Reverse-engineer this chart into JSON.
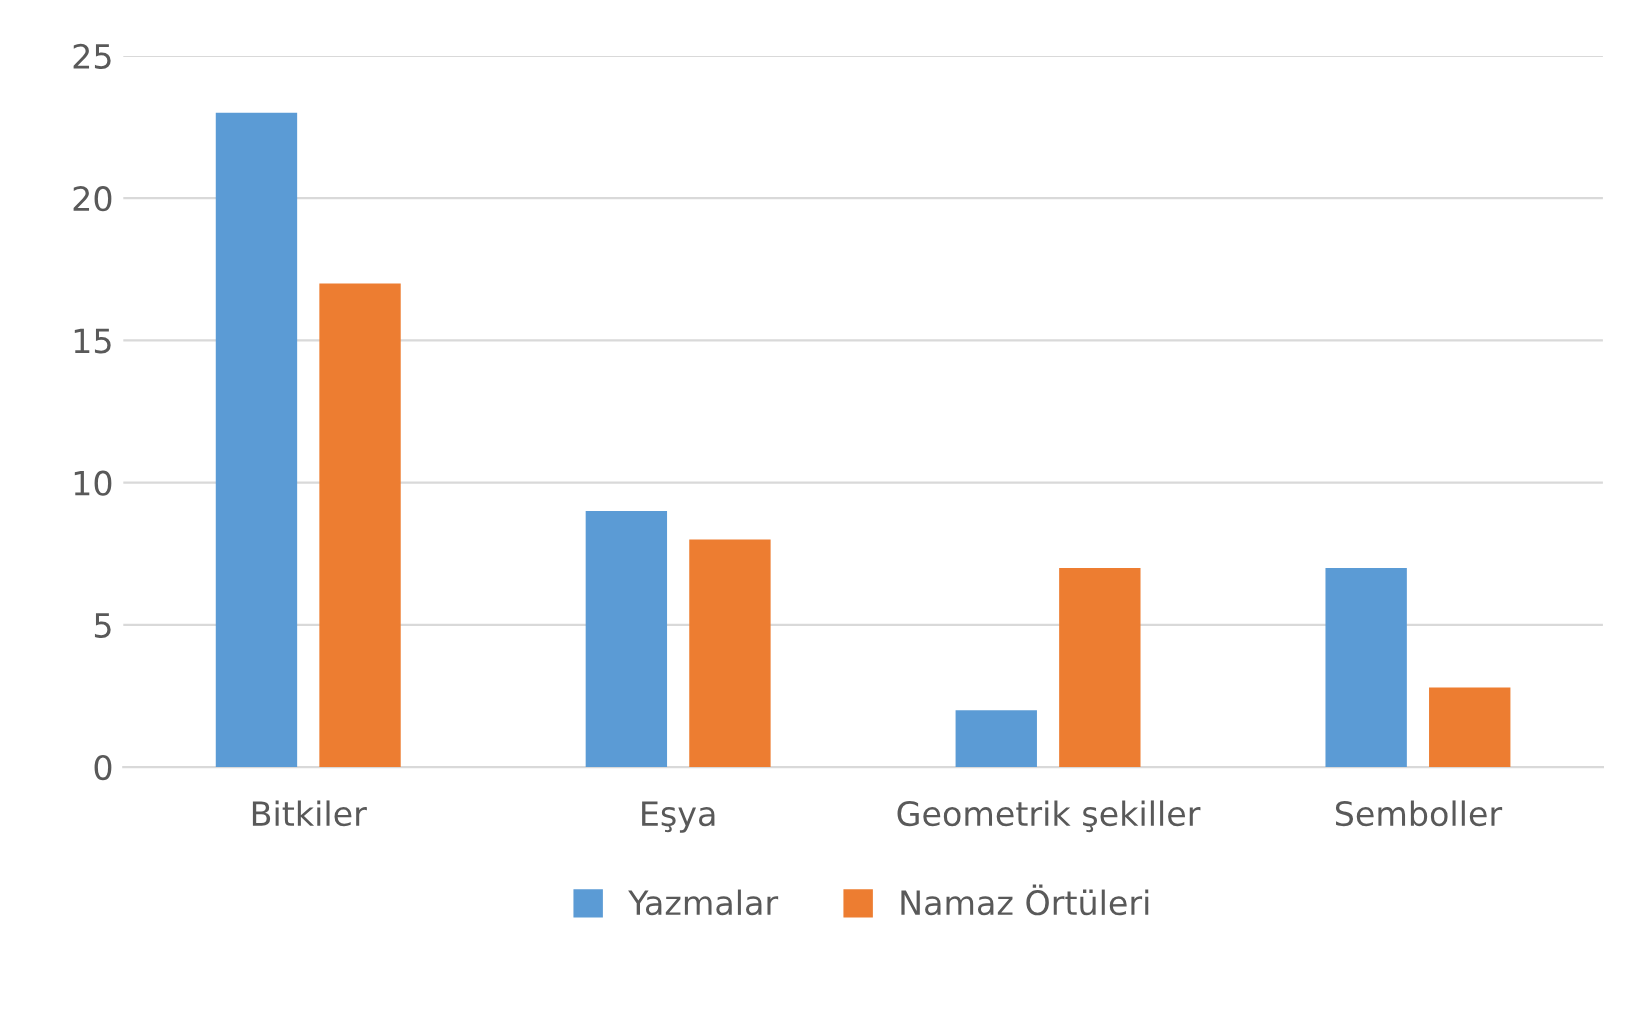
{
  "chart_data": {
    "type": "bar",
    "categories": [
      "Bitkiler",
      "Eşya",
      "Geometrik şekiller",
      "Semboller"
    ],
    "series": [
      {
        "name": "Yazmalar",
        "color": "#5b9bd5",
        "values": [
          23,
          9,
          2,
          7
        ]
      },
      {
        "name": "Namaz Örtüleri",
        "color": "#ed7d31",
        "values": [
          17,
          8,
          7,
          2.8
        ]
      }
    ],
    "ylim": [
      0,
      25
    ],
    "yticks": [
      0,
      5,
      10,
      15,
      20,
      25
    ],
    "grid": "y",
    "legend": "bottom"
  }
}
